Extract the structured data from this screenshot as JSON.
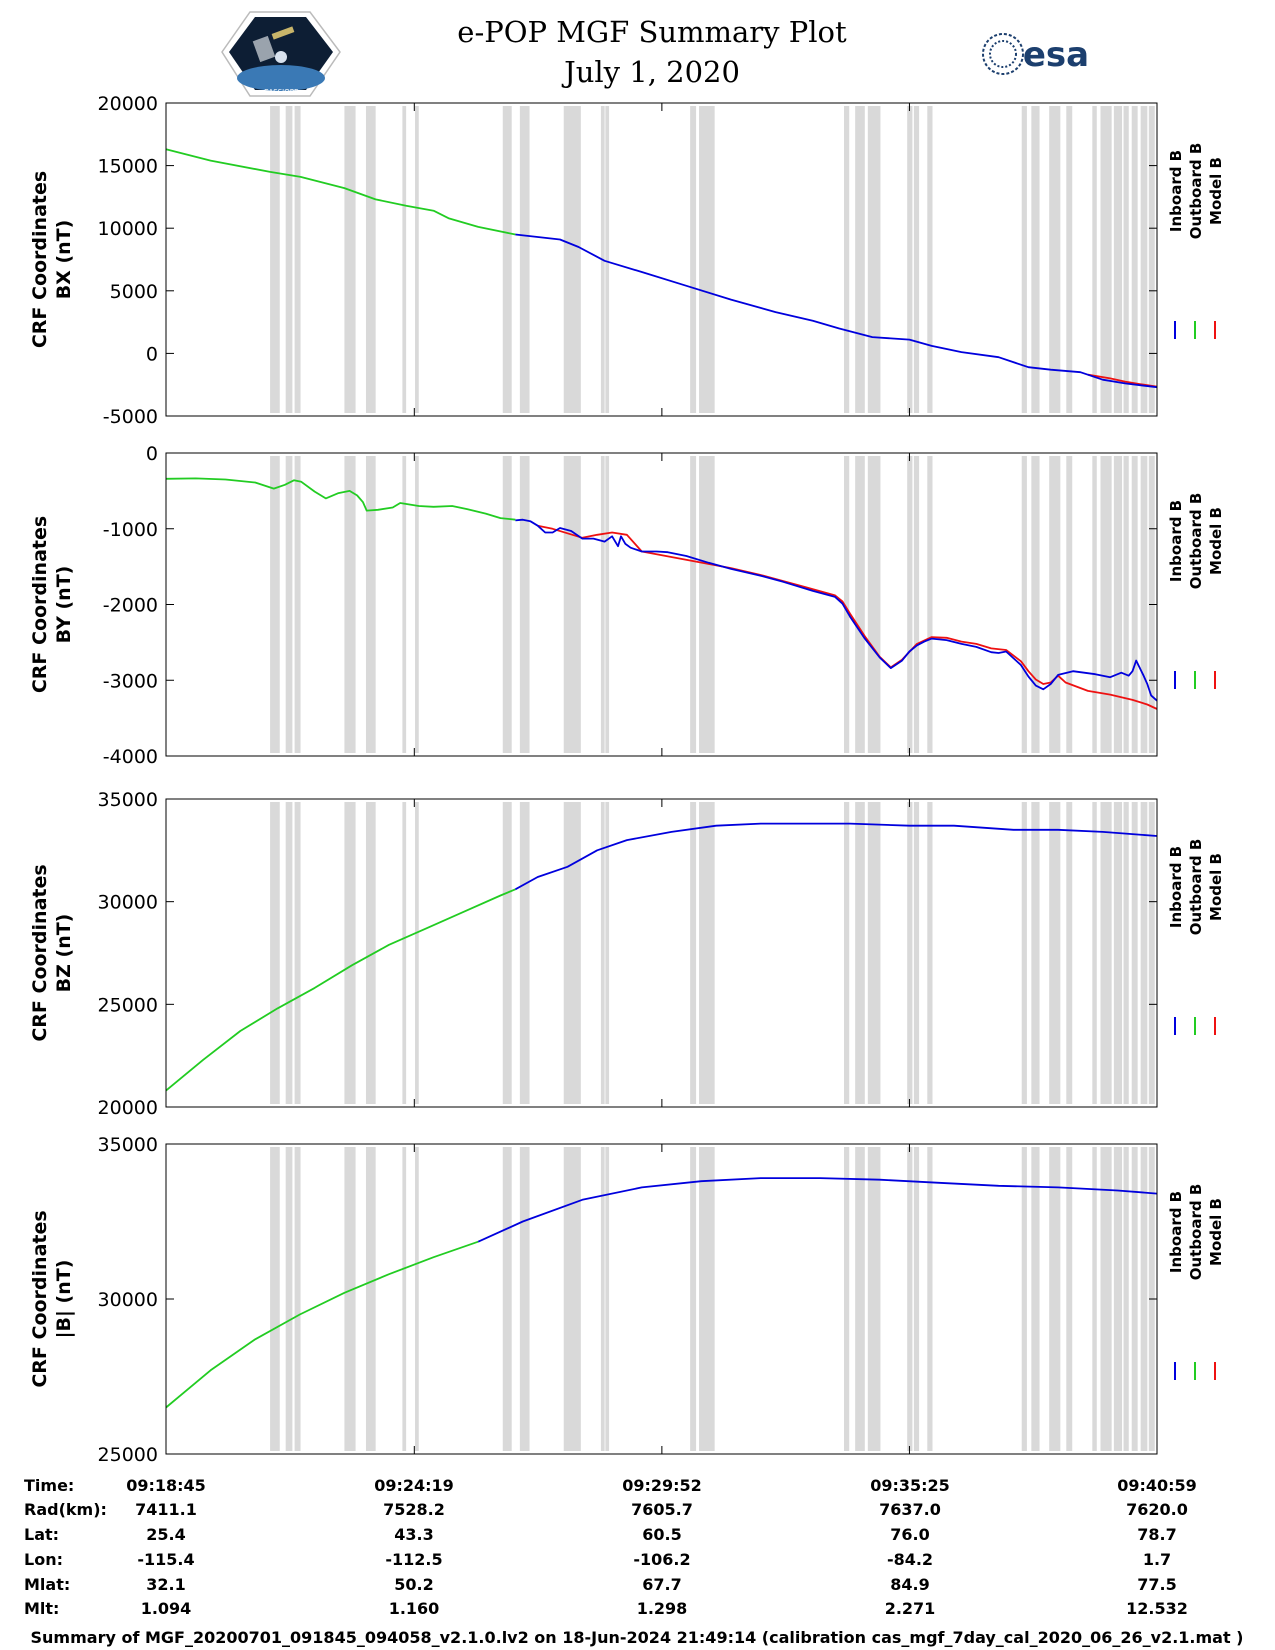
{
  "header": {
    "title_line1": "e-POP MGF Summary Plot",
    "title_line2": "July 1, 2020",
    "left_logo_text": "CASSIOPE",
    "right_logo_text": "esa"
  },
  "colors": {
    "inboard": "#0000dd",
    "outboard": "#22cc22",
    "model": "#ee1111",
    "gap_shading": "#d9d9d9"
  },
  "chart_data": {
    "type": "line",
    "time_range_s": [
      0,
      1333
    ],
    "x_ticks": [
      "09:18:45",
      "09:24:19",
      "09:29:52",
      "09:35:25",
      "09:40:59"
    ],
    "x_tick_seconds": [
      0,
      334,
      667,
      1000,
      1334
    ],
    "gap_intervals_s": [
      [
        140,
        153
      ],
      [
        161,
        170
      ],
      [
        173,
        181
      ],
      [
        240,
        255
      ],
      [
        269,
        282
      ],
      [
        318,
        323
      ],
      [
        335,
        340
      ],
      [
        453,
        465
      ],
      [
        476,
        489
      ],
      [
        535,
        558
      ],
      [
        585,
        590
      ],
      [
        591,
        596
      ],
      [
        705,
        713
      ],
      [
        717,
        738
      ],
      [
        912,
        919
      ],
      [
        927,
        940
      ],
      [
        944,
        961
      ],
      [
        997,
        1004
      ],
      [
        1006,
        1013
      ],
      [
        1024,
        1031
      ],
      [
        1151,
        1158
      ],
      [
        1164,
        1175
      ],
      [
        1188,
        1203
      ],
      [
        1211,
        1219
      ],
      [
        1246,
        1252
      ],
      [
        1257,
        1272
      ],
      [
        1275,
        1286
      ],
      [
        1288,
        1295
      ],
      [
        1299,
        1307
      ],
      [
        1311,
        1320
      ],
      [
        1322,
        1330
      ]
    ],
    "legend": [
      "Inboard B",
      "Outboard B",
      "Model B"
    ],
    "panels": [
      {
        "ylabel_line1": "CRF Coordinates",
        "ylabel_line2": "BX (nT)",
        "ylim": [
          -5000,
          20000
        ],
        "y_ticks": [
          "20000",
          "15000",
          "10000",
          "5000",
          "0",
          "-5000"
        ],
        "y_tick_values": [
          20000,
          15000,
          10000,
          5000,
          0,
          -5000
        ],
        "outboard": {
          "x": [
            0,
            60,
            140,
            181,
            240,
            282,
            323,
            360,
            380,
            420,
            470
          ],
          "y": [
            16300,
            15400,
            14500,
            14100,
            13200,
            12300,
            11800,
            11400,
            10800,
            10100,
            9500
          ]
        },
        "inboard": {
          "x": [
            470,
            500,
            530,
            555,
            590,
            640,
            700,
            760,
            820,
            870,
            905,
            950,
            1000,
            1030,
            1070,
            1120,
            1160,
            1190,
            1230,
            1260,
            1290,
            1333
          ],
          "y": [
            9500,
            9300,
            9100,
            8500,
            7400,
            6500,
            5400,
            4300,
            3300,
            2600,
            2000,
            1300,
            1100,
            600,
            100,
            -300,
            -1100,
            -1300,
            -1500,
            -2100,
            -2400,
            -2700
          ]
        },
        "model": {
          "x": [
            1240,
            1270,
            1290,
            1310,
            1333
          ],
          "y": [
            -1700,
            -2000,
            -2250,
            -2450,
            -2650
          ]
        }
      },
      {
        "ylabel_line1": "CRF Coordinates",
        "ylabel_line2": "BY (nT)",
        "ylim": [
          -4000,
          0
        ],
        "y_ticks": [
          "0",
          "-1000",
          "-2000",
          "-3000",
          "-4000"
        ],
        "y_tick_values": [
          0,
          -1000,
          -2000,
          -3000,
          -4000
        ],
        "outboard": {
          "x": [
            0,
            40,
            80,
            120,
            145,
            160,
            172,
            182,
            200,
            215,
            232,
            247,
            257,
            265,
            270,
            285,
            305,
            315,
            340,
            360,
            385,
            405,
            430,
            440,
            450,
            460,
            470
          ],
          "y": [
            -340,
            -335,
            -350,
            -390,
            -470,
            -420,
            -360,
            -380,
            -510,
            -600,
            -530,
            -500,
            -560,
            -650,
            -760,
            -750,
            -720,
            -660,
            -700,
            -710,
            -700,
            -740,
            -800,
            -830,
            -860,
            -870,
            -880
          ]
        },
        "inboard": {
          "x": [
            470,
            480,
            490,
            500,
            510,
            520,
            530,
            545,
            560,
            575,
            590,
            600,
            608,
            612,
            618,
            625,
            640,
            655,
            660,
            675,
            700,
            730,
            760,
            800,
            830,
            870,
            900,
            910,
            920,
            940,
            960,
            975,
            990,
            1000,
            1010,
            1020,
            1030,
            1050,
            1070,
            1090,
            1110,
            1120,
            1130,
            1150,
            1160,
            1170,
            1180,
            1190,
            1200,
            1220,
            1250,
            1270,
            1285,
            1295,
            1300,
            1305,
            1315,
            1320,
            1325,
            1333
          ],
          "y": [
            -890,
            -880,
            -900,
            -960,
            -1050,
            -1050,
            -990,
            -1030,
            -1130,
            -1130,
            -1170,
            -1100,
            -1230,
            -1100,
            -1200,
            -1250,
            -1300,
            -1300,
            -1300,
            -1310,
            -1360,
            -1450,
            -1530,
            -1620,
            -1700,
            -1820,
            -1900,
            -1990,
            -2160,
            -2450,
            -2700,
            -2840,
            -2740,
            -2620,
            -2540,
            -2490,
            -2450,
            -2470,
            -2520,
            -2560,
            -2630,
            -2640,
            -2620,
            -2800,
            -2950,
            -3070,
            -3120,
            -3050,
            -2930,
            -2880,
            -2920,
            -2960,
            -2900,
            -2940,
            -2880,
            -2740,
            -2940,
            -3050,
            -3200,
            -3270
          ]
        },
        "model": {
          "x": [
            500,
            520,
            540,
            560,
            580,
            600,
            620,
            640,
            760,
            800,
            860,
            900,
            910,
            920,
            940,
            960,
            975,
            990,
            1010,
            1030,
            1050,
            1070,
            1090,
            1110,
            1130,
            1150,
            1160,
            1170,
            1180,
            1190,
            1200,
            1210,
            1240,
            1270,
            1300,
            1320,
            1333
          ],
          "y": [
            -960,
            -1000,
            -1060,
            -1120,
            -1080,
            -1050,
            -1080,
            -1300,
            -1520,
            -1610,
            -1770,
            -1880,
            -1960,
            -2120,
            -2420,
            -2690,
            -2830,
            -2730,
            -2520,
            -2430,
            -2440,
            -2490,
            -2520,
            -2580,
            -2600,
            -2750,
            -2880,
            -2990,
            -3050,
            -3030,
            -2940,
            -3030,
            -3140,
            -3190,
            -3260,
            -3320,
            -3380
          ]
        }
      },
      {
        "ylabel_line1": "CRF Coordinates",
        "ylabel_line2": "BZ (nT)",
        "ylim": [
          20000,
          35000
        ],
        "y_ticks": [
          "35000",
          "30000",
          "25000",
          "20000"
        ],
        "y_tick_values": [
          35000,
          30000,
          25000,
          20000
        ],
        "outboard": {
          "x": [
            0,
            50,
            100,
            150,
            200,
            250,
            300,
            350,
            400,
            450,
            470
          ],
          "y": [
            20800,
            22300,
            23700,
            24800,
            25800,
            26900,
            27900,
            28700,
            29500,
            30300,
            30600
          ]
        },
        "inboard": {
          "x": [
            470,
            500,
            540,
            580,
            620,
            680,
            740,
            800,
            870,
            920,
            1000,
            1060,
            1140,
            1200,
            1260,
            1333
          ],
          "y": [
            30600,
            31200,
            31700,
            32500,
            33000,
            33400,
            33700,
            33800,
            33800,
            33800,
            33700,
            33700,
            33500,
            33500,
            33400,
            33200
          ]
        },
        "model": {
          "x": [],
          "y": []
        }
      },
      {
        "ylabel_line1": "CRF Coordinates",
        "ylabel_line2": "|B| (nT)",
        "ylim": [
          25000,
          35000
        ],
        "y_ticks": [
          "35000",
          "30000",
          "25000"
        ],
        "y_tick_values": [
          35000,
          30000,
          25000
        ],
        "outboard": {
          "x": [
            0,
            60,
            120,
            180,
            240,
            300,
            360,
            420,
            420
          ],
          "y": [
            26500,
            27700,
            28700,
            29500,
            30200,
            30800,
            31350,
            31850,
            31850
          ]
        },
        "inboard": {
          "x": [
            420,
            480,
            560,
            640,
            720,
            800,
            880,
            960,
            1040,
            1120,
            1200,
            1280,
            1333
          ],
          "y": [
            31850,
            32500,
            33200,
            33600,
            33800,
            33900,
            33900,
            33850,
            33750,
            33650,
            33600,
            33500,
            33400
          ]
        },
        "model": {
          "x": [],
          "y": []
        }
      }
    ]
  },
  "info_table": {
    "rows": [
      {
        "label": "Time:",
        "values": [
          "09:18:45",
          "09:24:19",
          "09:29:52",
          "09:35:25",
          "09:40:59"
        ]
      },
      {
        "label": "Rad(km):",
        "values": [
          "7411.1",
          "7528.2",
          "7605.7",
          "7637.0",
          "7620.0"
        ]
      },
      {
        "label": "Lat:",
        "values": [
          "25.4",
          "43.3",
          "60.5",
          "76.0",
          "78.7"
        ]
      },
      {
        "label": "Lon:",
        "values": [
          "-115.4",
          "-112.5",
          "-106.2",
          "-84.2",
          "1.7"
        ]
      },
      {
        "label": "Mlat:",
        "values": [
          "32.1",
          "50.2",
          "67.7",
          "84.9",
          "77.5"
        ]
      },
      {
        "label": "Mlt:",
        "values": [
          "1.094",
          "1.160",
          "1.298",
          "2.271",
          "12.532"
        ]
      }
    ]
  },
  "footer": {
    "text": "Summary of MGF_20200701_091845_094058_v2.1.0.lv2 on 18-Jun-2024 21:49:14 (calibration cas_mgf_7day_cal_2020_06_26_v2.1.mat )"
  }
}
